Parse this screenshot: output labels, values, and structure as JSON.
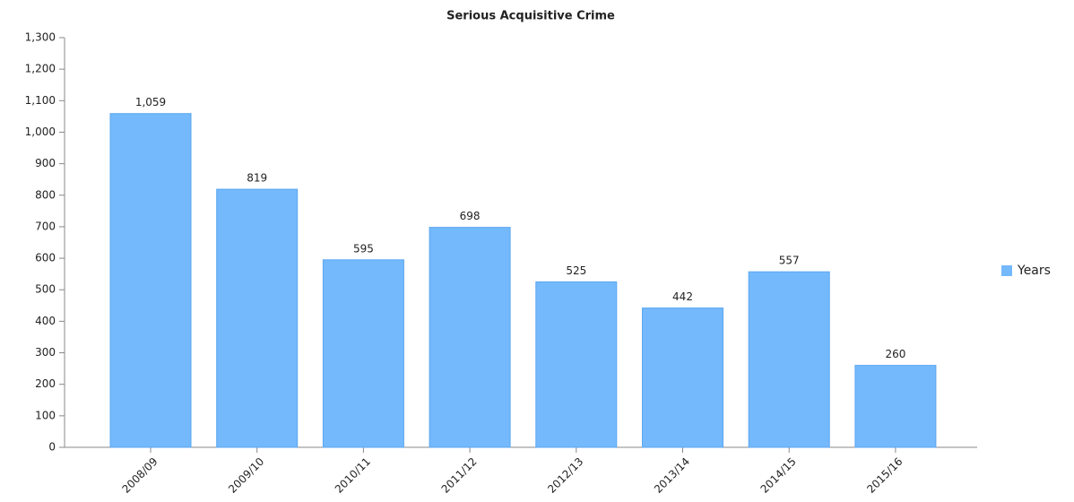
{
  "chart_data": {
    "type": "bar",
    "title": "Serious Acquisitive Crime",
    "categories": [
      "2008/09",
      "2009/10",
      "2010/11",
      "2011/12",
      "2012/13",
      "2013/14",
      "2014/15",
      "2015/16"
    ],
    "series": [
      {
        "name": "Years",
        "color": "#74b9fc",
        "values": [
          1059,
          819,
          595,
          698,
          525,
          442,
          557,
          260
        ],
        "value_labels": [
          "1,059",
          "819",
          "595",
          "698",
          "525",
          "442",
          "557",
          "260"
        ]
      }
    ],
    "ylim": [
      0,
      1300
    ],
    "yticks": [
      0,
      100,
      200,
      300,
      400,
      500,
      600,
      700,
      800,
      900,
      {
        "value": 1000,
        "label": "1,000"
      },
      {
        "value": 1100,
        "label": "1,100"
      },
      {
        "value": 1200,
        "label": "1,200"
      },
      {
        "value": 1300,
        "label": "1,300"
      }
    ],
    "grid": false,
    "legend": "right"
  }
}
